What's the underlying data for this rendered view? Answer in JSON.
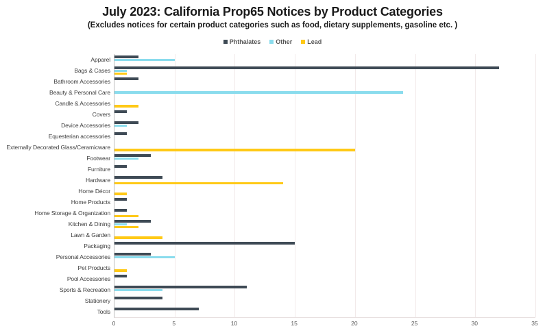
{
  "chart_data": {
    "type": "bar",
    "orientation": "horizontal",
    "title": "July 2023: California Prop65 Notices by Product Categories",
    "subtitle": "(Excludes notices for certain product categories such as food, dietary supplements, gasoline etc. )",
    "legend_position": "top",
    "grid": "vertical-only",
    "gridline_color": "#f2eaea",
    "axis_color": "#bdbdbd",
    "xlim": [
      0,
      35
    ],
    "xticks": [
      0,
      5,
      10,
      15,
      20,
      25,
      30,
      35
    ],
    "categories": [
      "Apparel",
      "Bags & Cases",
      "Bathroom Accessories",
      "Beauty & Personal Care",
      "Candle & Accessories",
      "Covers",
      "Device Accessories",
      "Equesterian accessories",
      "Externally Decorated Glass/Ceramicware",
      "Footwear",
      "Furniture",
      "Hardware",
      "Home Décor",
      "Home Products",
      "Home Storage & Organization",
      "Kitchen & Dining",
      "Lawn & Garden",
      "Packaging",
      "Personal Accessories",
      "Pet Products",
      "Pool Accessories",
      "Sports & Recreation",
      "Stationery",
      "Tools"
    ],
    "series": [
      {
        "name": "Phthalates",
        "color": "#3e4a55",
        "values": [
          2,
          32,
          2,
          0,
          0,
          1,
          2,
          1,
          0,
          3,
          1,
          4,
          0,
          1,
          1,
          3,
          0,
          15,
          3,
          0,
          1,
          11,
          4,
          7
        ]
      },
      {
        "name": "Other",
        "color": "#8adced",
        "values": [
          5,
          1,
          0,
          24,
          0,
          0,
          1,
          0,
          0,
          2,
          0,
          0,
          0,
          0,
          0,
          1,
          0,
          0,
          5,
          0,
          0,
          4,
          0,
          0
        ]
      },
      {
        "name": "Lead",
        "color": "#ffc916",
        "values": [
          0,
          1,
          0,
          0,
          2,
          0,
          0,
          0,
          20,
          0,
          0,
          14,
          1,
          0,
          2,
          2,
          4,
          0,
          0,
          1,
          0,
          0,
          0,
          0
        ]
      }
    ]
  }
}
